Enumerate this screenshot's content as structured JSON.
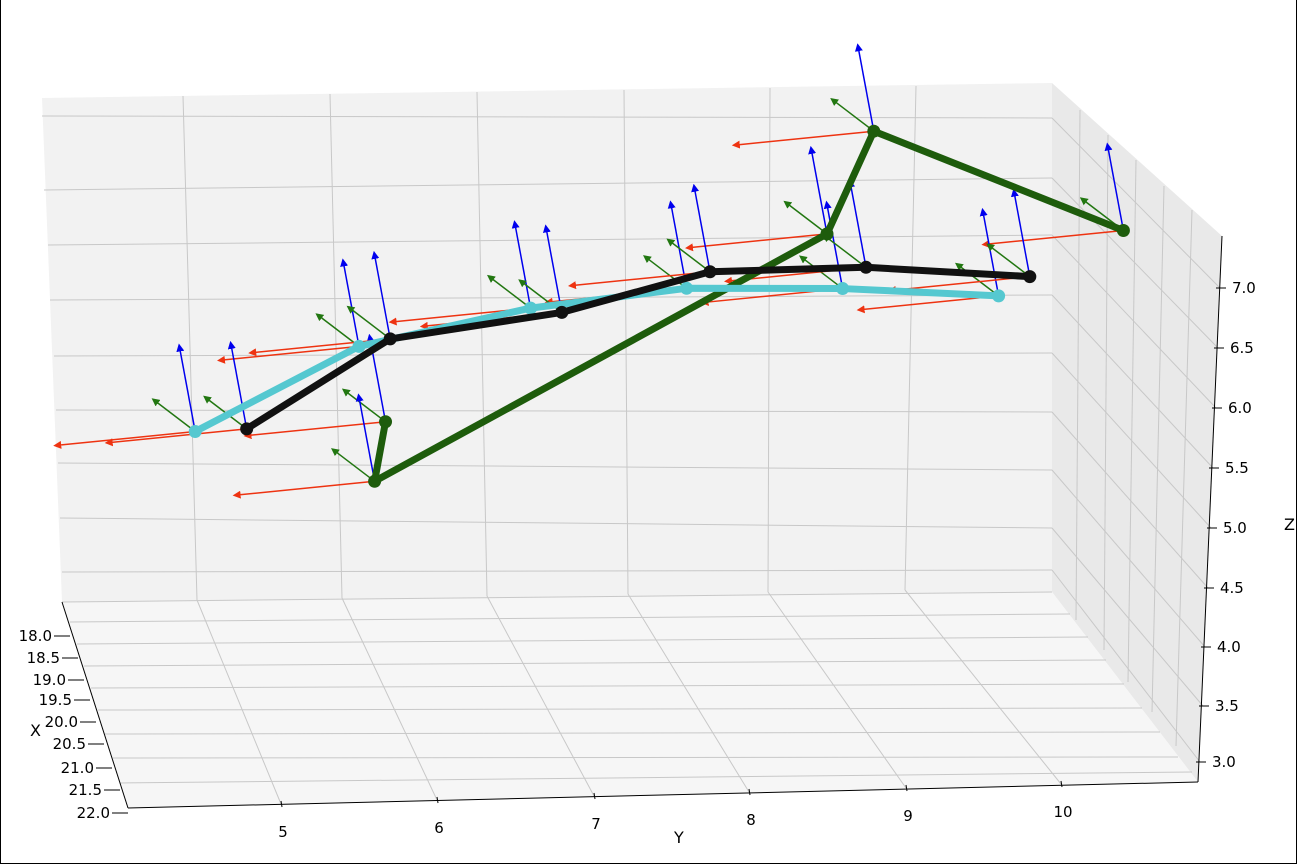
{
  "chart_data": {
    "type": "3d-line-with-frame-arrows",
    "xlabel": "X",
    "ylabel": "Y",
    "zlabel": "Z",
    "x_ticks": [
      "18.0",
      "18.5",
      "19.0",
      "19.5",
      "20.0",
      "20.5",
      "21.0",
      "21.5",
      "22.0"
    ],
    "y_ticks": [
      "5",
      "6",
      "7",
      "8",
      "9",
      "10"
    ],
    "z_ticks": [
      "7.0",
      "6.5",
      "6.0",
      "5.5",
      "5.0",
      "4.5",
      "4.0",
      "3.5",
      "3.0"
    ],
    "xlim": [
      18.0,
      22.0
    ],
    "ylim": [
      4.0,
      11.0
    ],
    "zlim": [
      2.8,
      7.3
    ],
    "grid": true,
    "frame_arrow_colors": {
      "x_axis": "#ee3311",
      "y_axis": "#227711",
      "z_axis": "#0000ee"
    },
    "series": [
      {
        "color": "#1e5c0c",
        "points": [
          {
            "y": 5.67,
            "z": 5.55
          },
          {
            "y": 5.6,
            "z": 5.05
          },
          {
            "y": 8.5,
            "z": 6.95
          },
          {
            "y": 8.8,
            "z": 7.8
          },
          {
            "y": 10.4,
            "z": 6.85
          }
        ]
      },
      {
        "color": "#55c8d0",
        "points": [
          {
            "y": 4.45,
            "z": 5.55
          },
          {
            "y": 5.5,
            "z": 6.2
          },
          {
            "y": 6.6,
            "z": 6.45
          },
          {
            "y": 7.6,
            "z": 6.55
          },
          {
            "y": 8.6,
            "z": 6.48
          },
          {
            "y": 9.6,
            "z": 6.35
          }
        ]
      },
      {
        "color": "#111111",
        "points": [
          {
            "y": 4.78,
            "z": 5.55
          },
          {
            "y": 5.7,
            "z": 6.25
          },
          {
            "y": 6.8,
            "z": 6.4
          },
          {
            "y": 7.75,
            "z": 6.68
          },
          {
            "y": 8.75,
            "z": 6.65
          },
          {
            "y": 9.8,
            "z": 6.5
          }
        ]
      }
    ]
  }
}
